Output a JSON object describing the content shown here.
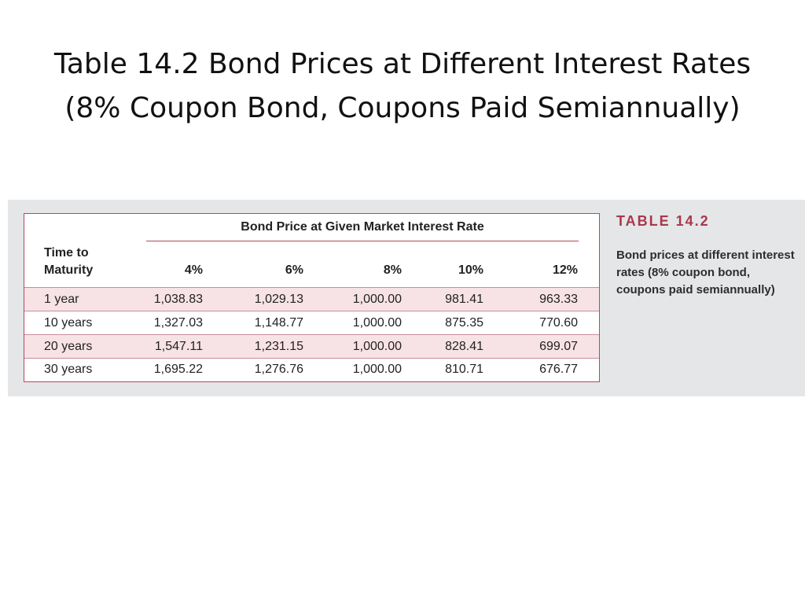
{
  "slide": {
    "title_line1": "Table 14.2 Bond Prices at Different Interest Rates",
    "title_line2": "(8% Coupon Bond, Coupons Paid Semiannually)"
  },
  "table": {
    "spanner": "Bond Price at Given Market Interest Rate",
    "header_first_line1": "Time to",
    "header_first_line2": "Maturity",
    "rates": [
      "4%",
      "6%",
      "8%",
      "10%",
      "12%"
    ],
    "rows": [
      {
        "maturity": "1 year",
        "prices": [
          "1,038.83",
          "1,029.13",
          "1,000.00",
          "981.41",
          "963.33"
        ]
      },
      {
        "maturity": "10 years",
        "prices": [
          "1,327.03",
          "1,148.77",
          "1,000.00",
          "875.35",
          "770.60"
        ]
      },
      {
        "maturity": "20 years",
        "prices": [
          "1,547.11",
          "1,231.15",
          "1,000.00",
          "828.41",
          "699.07"
        ]
      },
      {
        "maturity": "30 years",
        "prices": [
          "1,695.22",
          "1,276.76",
          "1,000.00",
          "810.71",
          "676.77"
        ]
      }
    ]
  },
  "caption": {
    "label": "TABLE 14.2",
    "text": "Bond prices at different interest rates (8% coupon bond, coupons paid semiannually)"
  },
  "colors": {
    "accent": "#a8384b",
    "row_shade": "#f7e3e6",
    "panel_bg": "#e5e6e8"
  }
}
